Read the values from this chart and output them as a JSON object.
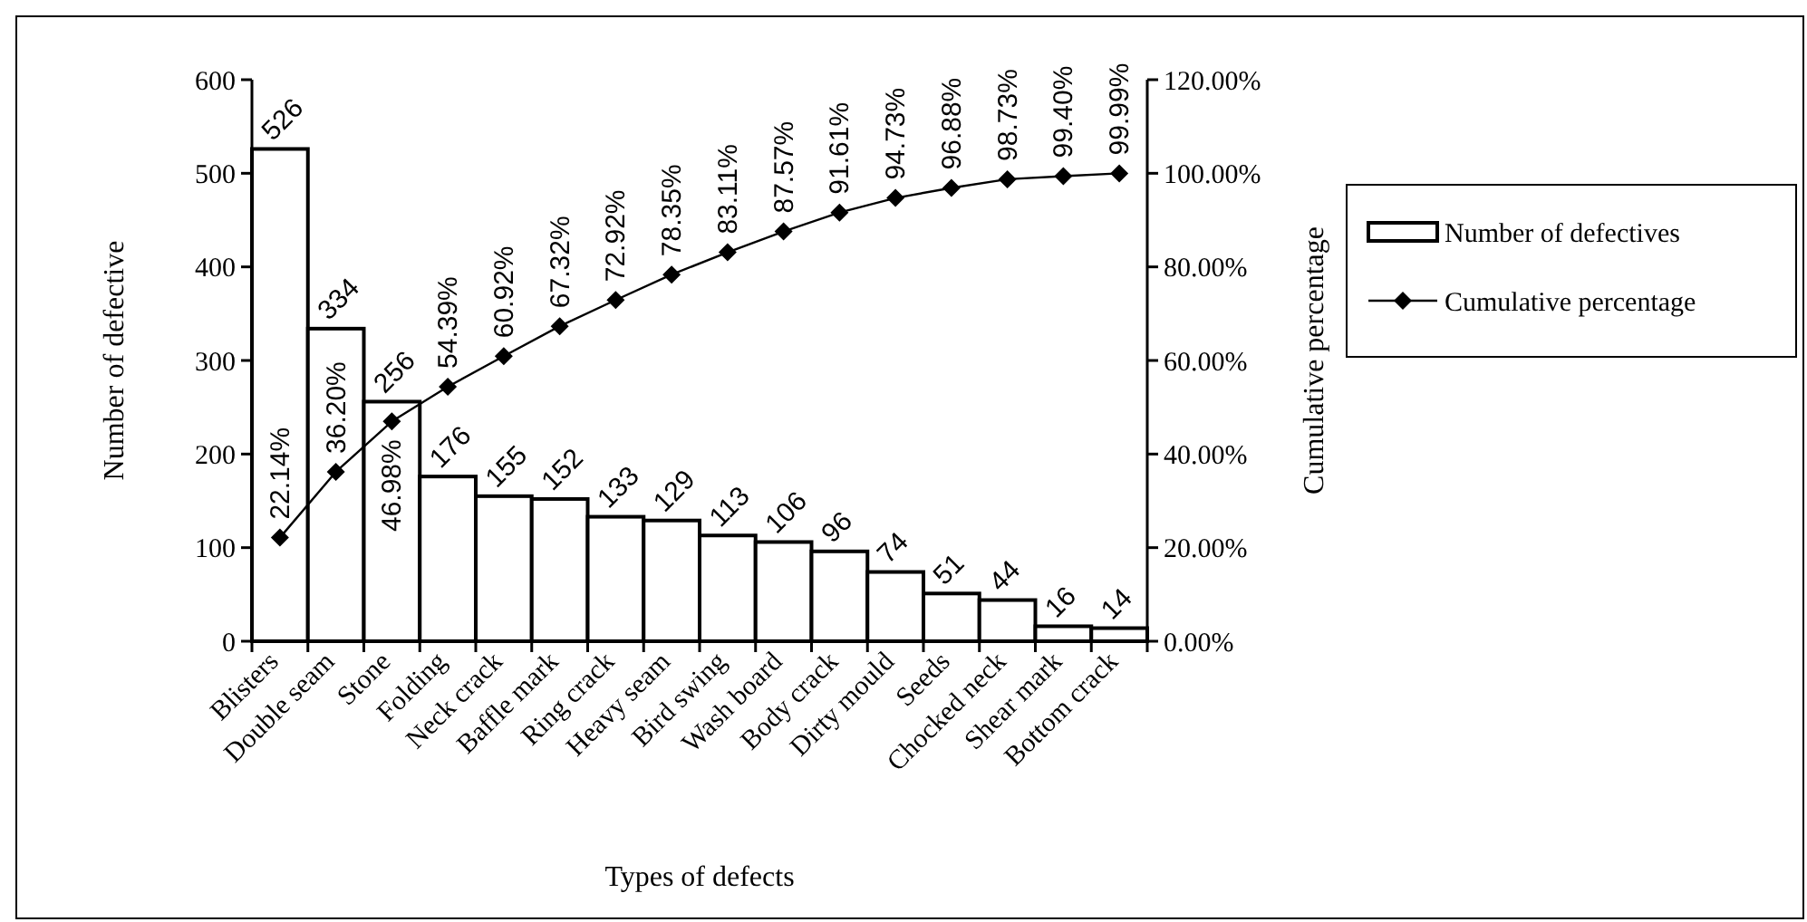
{
  "chart_data": {
    "type": "bar",
    "xlabel": "Types of defects",
    "ylabel": "Number of defective",
    "y2label": "Cumulative percentage",
    "categories": [
      "Blisters",
      "Double seam",
      "Stone",
      "Folding",
      "Neck crack",
      "Baffle mark",
      "Ring crack",
      "Heavy seam",
      "Bird swing",
      "Wash board",
      "Body crack",
      "Dirty mould",
      "Seeds",
      "Chocked neck",
      "Shear mark",
      "Bottom crack"
    ],
    "series": [
      {
        "name": "Number of defectives",
        "color": "#ffffff",
        "values": [
          526,
          334,
          256,
          176,
          155,
          152,
          133,
          129,
          113,
          106,
          96,
          74,
          51,
          44,
          16,
          14
        ],
        "value_labels": [
          "526",
          "334",
          "256",
          "176",
          "155",
          "152",
          "133",
          "129",
          "113",
          "106",
          "96",
          "74",
          "51",
          "44",
          "16",
          "14"
        ]
      },
      {
        "name": "Cumulative percentage",
        "type": "line",
        "axis": "y2",
        "color": "#000000",
        "marker": "diamond",
        "values": [
          22.14,
          36.2,
          46.98,
          54.39,
          60.92,
          67.32,
          72.92,
          78.35,
          83.11,
          87.57,
          91.61,
          94.73,
          96.88,
          98.73,
          99.4,
          99.99
        ],
        "value_labels": [
          "22.14%",
          "36.20%",
          "46.98%",
          "54.39%",
          "60.92%",
          "67.32%",
          "72.92%",
          "78.35%",
          "83.11%",
          "87.57%",
          "91.61%",
          "94.73%",
          "96.88%",
          "98.73%",
          "99.40%",
          "99.99%"
        ]
      }
    ],
    "ylim": [
      0,
      600
    ],
    "yticks": [
      0,
      100,
      200,
      300,
      400,
      500,
      600
    ],
    "y2lim": [
      0,
      120
    ],
    "y2ticks": [
      {
        "value": 0,
        "label": "0.00%"
      },
      {
        "value": 20,
        "label": "20.00%"
      },
      {
        "value": 40,
        "label": "40.00%"
      },
      {
        "value": 60,
        "label": "60.00%"
      },
      {
        "value": 80,
        "label": "80.00%"
      },
      {
        "value": 100,
        "label": "100.00%"
      },
      {
        "value": 120,
        "label": "120.00%"
      }
    ],
    "legend": "right",
    "grid": false
  }
}
